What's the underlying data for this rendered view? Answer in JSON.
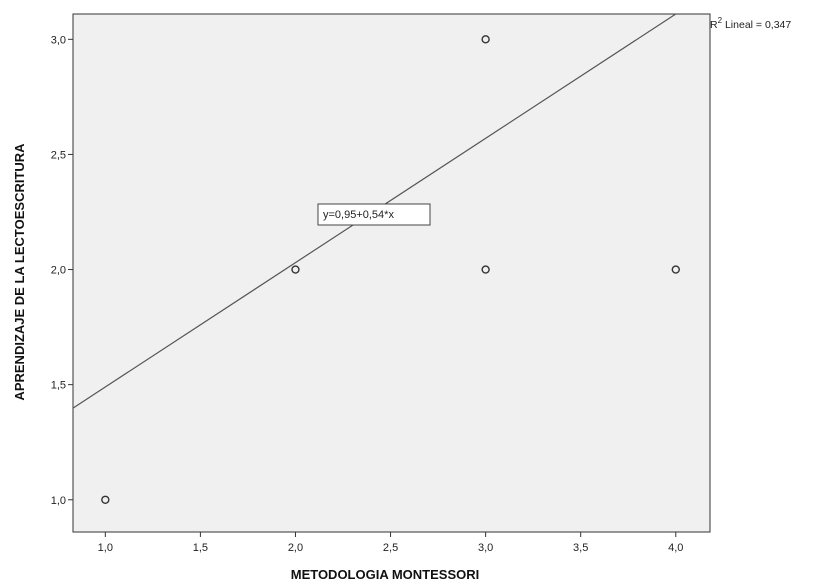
{
  "chart_data": {
    "type": "scatter",
    "xlabel": "METODOLOGIA MONTESSORI",
    "ylabel": "APRENDIZAJE DE LA LECTOESCRITURA",
    "xlim": [
      0.83,
      4.18
    ],
    "ylim": [
      0.86,
      3.11
    ],
    "x_ticks": [
      1.0,
      1.5,
      2.0,
      2.5,
      3.0,
      3.5,
      4.0
    ],
    "y_ticks": [
      1.0,
      1.5,
      2.0,
      2.5,
      3.0
    ],
    "x_tick_labels": [
      "1,0",
      "1,5",
      "2,0",
      "2,5",
      "3,0",
      "3,5",
      "4,0"
    ],
    "y_tick_labels": [
      "1,0",
      "1,5",
      "2,0",
      "2,5",
      "3,0"
    ],
    "points": [
      {
        "x": 1.0,
        "y": 1.0
      },
      {
        "x": 2.0,
        "y": 2.0
      },
      {
        "x": 3.0,
        "y": 3.0
      },
      {
        "x": 3.0,
        "y": 2.0
      },
      {
        "x": 4.0,
        "y": 2.0
      }
    ],
    "fit_line": {
      "intercept": 0.95,
      "slope": 0.54
    },
    "equation_label": "y=0,95+0,54*x",
    "r2_prefix": "R",
    "r2_sup": "2",
    "r2_text": " Lineal = 0,347",
    "grid": false,
    "colors": {
      "plot_background": "#f0f0f0",
      "frame": "#333333",
      "line": "#555555",
      "marker": "#333333"
    }
  }
}
